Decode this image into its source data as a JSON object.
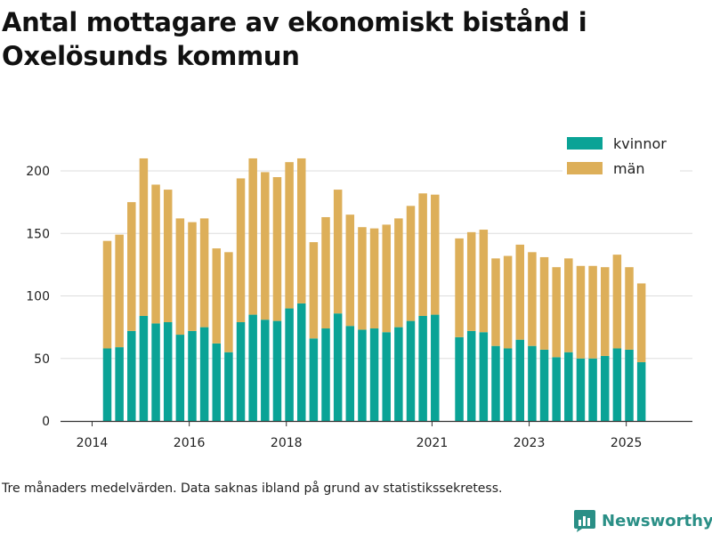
{
  "title": "Antal mottagare av ekonomiskt bistånd i Oxelösunds kommun",
  "footnote": "Tre månaders medelvärden. Data saknas ibland på grund av statistikssekretess.",
  "brand": {
    "name": "Newsworthy",
    "icon": "newsworthy-logo-icon"
  },
  "colors": {
    "kvinnor": "#0aa396",
    "man": "#ddaf59",
    "grid": "#dddddd",
    "axis": "#333333"
  },
  "chart_data": {
    "type": "bar",
    "stacked": true,
    "title": "Antal mottagare av ekonomiskt bistånd i Oxelösunds kommun",
    "xlabel": "",
    "ylabel": "",
    "ylim": [
      0,
      220
    ],
    "yticks": [
      0,
      50,
      100,
      150,
      200
    ],
    "xticks": [
      {
        "label": "2014",
        "pos": 0
      },
      {
        "label": "2016",
        "pos": 8
      },
      {
        "label": "2018",
        "pos": 16
      },
      {
        "label": "2021",
        "pos": 28
      },
      {
        "label": "2023",
        "pos": 36
      },
      {
        "label": "2025",
        "pos": 44
      }
    ],
    "grid": true,
    "legend": "top-right",
    "series": [
      {
        "name": "kvinnor",
        "values": [
          58,
          59,
          72,
          84,
          78,
          79,
          69,
          72,
          75,
          62,
          55,
          79,
          85,
          81,
          80,
          90,
          94,
          66,
          74,
          86,
          76,
          73,
          74,
          71,
          75,
          80,
          84,
          85,
          null,
          67,
          72,
          71,
          60,
          58,
          65,
          60,
          57,
          51,
          55,
          50,
          50,
          52,
          58,
          57,
          47
        ]
      },
      {
        "name": "män",
        "values": [
          86,
          90,
          103,
          126,
          111,
          106,
          93,
          87,
          87,
          76,
          80,
          115,
          125,
          118,
          115,
          117,
          116,
          77,
          89,
          99,
          89,
          82,
          80,
          86,
          87,
          92,
          98,
          96,
          null,
          79,
          79,
          82,
          70,
          74,
          76,
          75,
          74,
          72,
          75,
          74,
          74,
          71,
          75,
          66,
          63
        ]
      }
    ]
  }
}
